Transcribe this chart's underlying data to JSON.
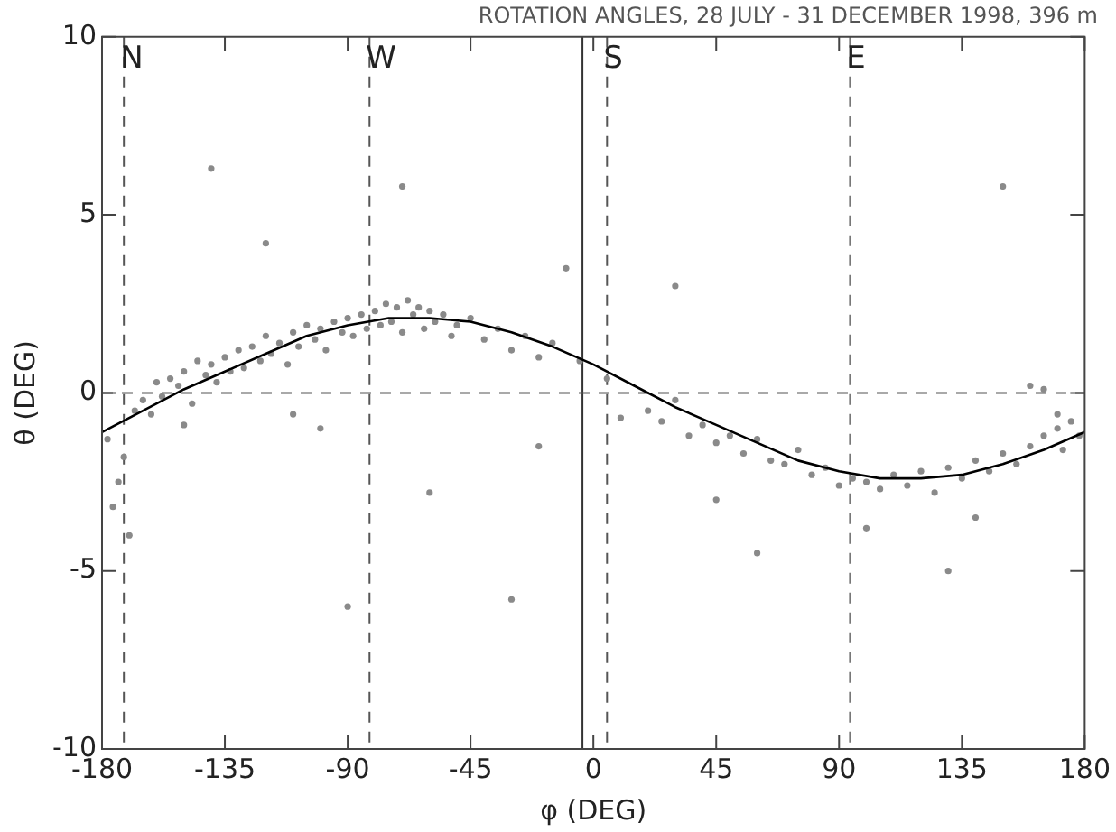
{
  "chart_data": {
    "type": "scatter",
    "title": "ROTATION ANGLES, 28 JULY - 31 DECEMBER 1998, 396 m",
    "xlabel": "φ (DEG)",
    "ylabel": "θ (DEG)",
    "xlim": [
      -180,
      180
    ],
    "xticks": [
      -180,
      -135,
      -90,
      -45,
      0,
      45,
      90,
      135,
      180
    ],
    "ylim": [
      -10,
      10
    ],
    "yticks": [
      -10,
      -5,
      0,
      5,
      10
    ],
    "grid": false,
    "legend": false,
    "marker": "circle",
    "series": [
      {
        "color": "#8a8a8a",
        "x": [
          -178,
          -176,
          -174,
          -172,
          -170,
          -168,
          -165,
          -162,
          -160,
          -158,
          -155,
          -152,
          -150,
          -147,
          -145,
          -142,
          -140,
          -138,
          -135,
          -133,
          -130,
          -128,
          -125,
          -122,
          -120,
          -118,
          -115,
          -112,
          -110,
          -108,
          -105,
          -102,
          -100,
          -98,
          -95,
          -92,
          -90,
          -88,
          -85,
          -83,
          -80,
          -78,
          -76,
          -74,
          -72,
          -70,
          -68,
          -66,
          -64,
          -62,
          -60,
          -58,
          -55,
          -52,
          -50,
          -45,
          -40,
          -35,
          -30,
          -25,
          -20,
          -15,
          -10,
          -5,
          -120,
          -100,
          -60,
          -90,
          -140,
          -30,
          -150,
          -110,
          -20,
          -70,
          5,
          10,
          20,
          25,
          30,
          35,
          40,
          45,
          50,
          55,
          60,
          65,
          70,
          75,
          80,
          85,
          90,
          95,
          100,
          105,
          110,
          115,
          120,
          125,
          130,
          135,
          140,
          145,
          150,
          155,
          160,
          165,
          170,
          172,
          175,
          178,
          60,
          100,
          130,
          160,
          165,
          170,
          140,
          45,
          150,
          30
        ],
        "values": [
          -1.3,
          -3.2,
          -2.5,
          -1.8,
          -4.0,
          -0.5,
          -0.2,
          -0.6,
          0.3,
          -0.1,
          0.4,
          0.2,
          0.6,
          -0.3,
          0.9,
          0.5,
          0.8,
          0.3,
          1.0,
          0.6,
          1.2,
          0.7,
          1.3,
          0.9,
          1.6,
          1.1,
          1.4,
          0.8,
          1.7,
          1.3,
          1.9,
          1.5,
          1.8,
          1.2,
          2.0,
          1.7,
          2.1,
          1.6,
          2.2,
          1.8,
          2.3,
          1.9,
          2.5,
          2.0,
          2.4,
          1.7,
          2.6,
          2.2,
          2.4,
          1.8,
          2.3,
          2.0,
          2.2,
          1.6,
          1.9,
          2.1,
          1.5,
          1.8,
          1.2,
          1.6,
          1.0,
          1.4,
          3.5,
          0.9,
          4.2,
          -1.0,
          -2.8,
          -6.0,
          6.3,
          -5.8,
          -0.9,
          -0.6,
          -1.5,
          5.8,
          0.4,
          -0.7,
          -0.5,
          -0.8,
          -0.2,
          -1.2,
          -0.9,
          -1.4,
          -1.2,
          -1.7,
          -1.3,
          -1.9,
          -2.0,
          -1.6,
          -2.3,
          -2.1,
          -2.6,
          -2.4,
          -2.5,
          -2.7,
          -2.3,
          -2.6,
          -2.2,
          -2.8,
          -2.1,
          -2.4,
          -1.9,
          -2.2,
          -1.7,
          -2.0,
          -1.5,
          -1.2,
          -1.0,
          -1.6,
          -0.8,
          -1.2,
          -4.5,
          -3.8,
          -5.0,
          0.2,
          0.1,
          -0.6,
          -3.5,
          -3.0,
          5.8,
          3.0
        ]
      },
      {
        "type": "line",
        "color": "#000000",
        "marker": "none",
        "line_style": "solid",
        "x": [
          -180,
          -165,
          -150,
          -135,
          -120,
          -105,
          -90,
          -75,
          -60,
          -45,
          -30,
          -15,
          0,
          15,
          30,
          45,
          60,
          75,
          90,
          105,
          120,
          135,
          150,
          165,
          180
        ],
        "values": [
          -1.1,
          -0.5,
          0.1,
          0.6,
          1.1,
          1.6,
          1.9,
          2.1,
          2.1,
          2.0,
          1.7,
          1.3,
          0.8,
          0.2,
          -0.4,
          -0.9,
          -1.4,
          -1.9,
          -2.2,
          -2.4,
          -2.4,
          -2.3,
          -2.0,
          -1.6,
          -1.1
        ]
      }
    ],
    "ref_lines": [
      {
        "axis": "x",
        "value": -172,
        "label": "N",
        "color": "#555555",
        "line_style": "dashed"
      },
      {
        "axis": "x",
        "value": -82,
        "label": "W",
        "color": "#555555",
        "line_style": "dashed"
      },
      {
        "axis": "x",
        "value": -4,
        "color": "#333333",
        "line_style": "solid"
      },
      {
        "axis": "x",
        "value": 5,
        "label": "S",
        "color": "#555555",
        "line_style": "dashed"
      },
      {
        "axis": "x",
        "value": 94,
        "label": "E",
        "color": "#777777",
        "line_style": "dashed"
      },
      {
        "axis": "y",
        "value": 0,
        "color": "#555555",
        "line_style": "dashed"
      }
    ]
  }
}
